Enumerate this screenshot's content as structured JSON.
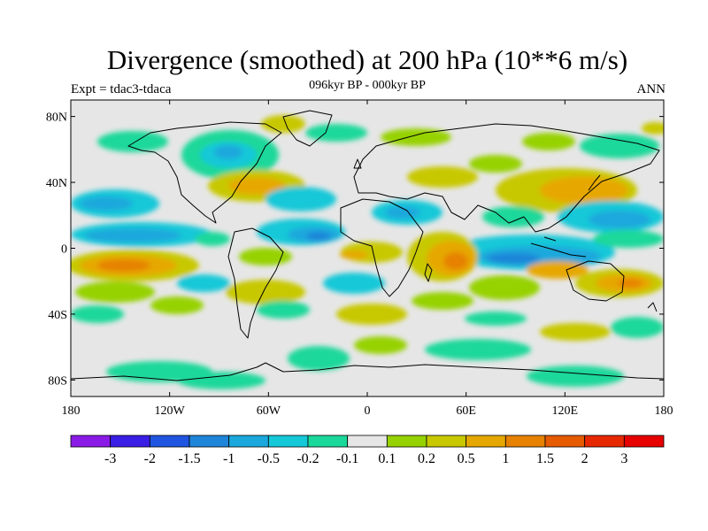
{
  "title": "Divergence (smoothed) at 200 hPa (10**6 m/s)",
  "subtitle": "096kyr BP - 000kyr BP",
  "experiment_label": "Expt = tdac3-tdaca",
  "season_label": "ANN",
  "colors": {
    "land_outline": "#000000",
    "near_zero": "#e6e6e6",
    "frame": "#000000"
  },
  "map": {
    "projection": "cylindrical-equidistant",
    "lon_range": [
      -180,
      180
    ],
    "lat_range": [
      -90,
      90
    ],
    "x_ticks": [
      {
        "value": -180,
        "label": "180"
      },
      {
        "value": -120,
        "label": "120W"
      },
      {
        "value": -60,
        "label": "60W"
      },
      {
        "value": 0,
        "label": "0"
      },
      {
        "value": 60,
        "label": "60E"
      },
      {
        "value": 120,
        "label": "120E"
      },
      {
        "value": 180,
        "label": "180"
      }
    ],
    "y_ticks": [
      {
        "value": 80,
        "label": "80N"
      },
      {
        "value": 40,
        "label": "40N"
      },
      {
        "value": 0,
        "label": "0"
      },
      {
        "value": -40,
        "label": "40S"
      },
      {
        "value": -80,
        "label": "80S"
      }
    ]
  },
  "colorbar": {
    "colors": [
      "#8a1ae6",
      "#3a1ee6",
      "#1f55e0",
      "#1e85d8",
      "#1aa8dc",
      "#14c8d8",
      "#1ad89a",
      "#e6e6e6",
      "#96d200",
      "#c8c800",
      "#e6a800",
      "#e68200",
      "#e65a00",
      "#e62800",
      "#e60000"
    ],
    "labels": [
      "-3",
      "-2",
      "-1.5",
      "-1",
      "-0.5",
      "-0.2",
      "-0.1",
      "0.1",
      "0.2",
      "0.5",
      "1",
      "1.5",
      "2",
      "3"
    ]
  },
  "chart_data": {
    "type": "filled-contour-map",
    "title": "Divergence (smoothed) at 200 hPa (10**6 m/s)",
    "subtitle": "096kyr BP - 000kyr BP",
    "levels": [
      -3,
      -2,
      -1.5,
      -1,
      -0.5,
      -0.2,
      -0.1,
      0.1,
      0.2,
      0.5,
      1,
      1.5,
      2,
      3
    ],
    "features": [
      {
        "lon_range": [
          -180,
          -100
        ],
        "lat_range": [
          -25,
          0
        ],
        "value": 0.8
      },
      {
        "lon_range": [
          -180,
          -90
        ],
        "lat_range": [
          0,
          10
        ],
        "value": -0.6
      },
      {
        "lon_range": [
          -80,
          -20
        ],
        "lat_range": [
          0,
          20
        ],
        "value": -0.7
      },
      {
        "lon_range": [
          -130,
          -40
        ],
        "lat_range": [
          15,
          35
        ],
        "value": 0.5
      },
      {
        "lon_range": [
          -120,
          -60
        ],
        "lat_range": [
          45,
          75
        ],
        "value": -0.4
      },
      {
        "lon_range": [
          -60,
          -10
        ],
        "lat_range": [
          -30,
          -10
        ],
        "value": 0.4
      },
      {
        "lon_range": [
          10,
          60
        ],
        "lat_range": [
          -15,
          15
        ],
        "value": 0.9
      },
      {
        "lon_range": [
          60,
          140
        ],
        "lat_range": [
          -10,
          10
        ],
        "value": -1.2
      },
      {
        "lon_range": [
          80,
          160
        ],
        "lat_range": [
          25,
          45
        ],
        "value": 0.5
      },
      {
        "lon_range": [
          130,
          180
        ],
        "lat_range": [
          -40,
          -15
        ],
        "value": 0.8
      },
      {
        "lon_range": [
          40,
          110
        ],
        "lat_range": [
          10,
          35
        ],
        "value": -0.4
      },
      {
        "lon_range": [
          -140,
          -60
        ],
        "lat_range": [
          -60,
          -45
        ],
        "value": -0.3
      },
      {
        "lon_range": [
          0,
          60
        ],
        "lat_range": [
          -50,
          -30
        ],
        "value": 0.3
      }
    ]
  }
}
